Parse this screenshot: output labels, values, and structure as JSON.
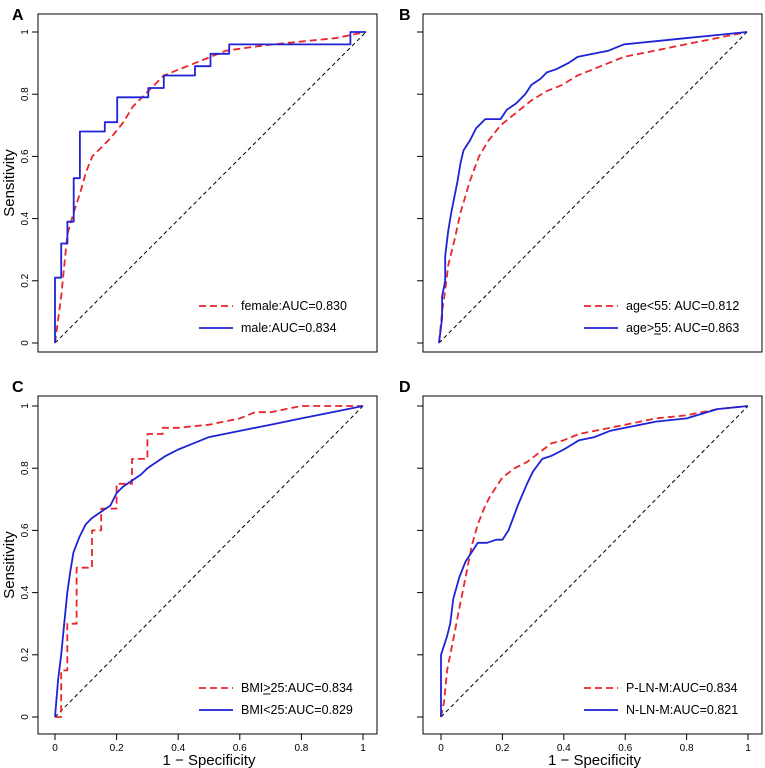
{
  "colors": {
    "red": "#e8262b",
    "blue": "#1f22d6",
    "axis": "#000000"
  },
  "chart_data": [
    {
      "panel_label": "A",
      "type": "line",
      "xlabel": "",
      "ylabel": "Sensitivity",
      "xlim": [
        0,
        1
      ],
      "ylim": [
        0,
        1
      ],
      "x_ticks": [],
      "x_tick_labels": [],
      "y_ticks": [
        0,
        0.2,
        0.4,
        0.6,
        0.8,
        1
      ],
      "y_tick_labels": [
        "0",
        "0.2",
        "0.4",
        "0.6",
        "0.8",
        "1"
      ],
      "reference_line": "diagonal",
      "legend_position": "bottom-right",
      "series": [
        {
          "name": "female:AUC=0.830",
          "color": "red",
          "dash": true,
          "x": [
            0,
            0.02,
            0.03,
            0.04,
            0.06,
            0.08,
            0.1,
            0.12,
            0.15,
            0.18,
            0.22,
            0.25,
            0.3,
            0.35,
            0.4,
            0.45,
            0.5,
            0.55,
            0.62,
            0.7,
            0.8,
            0.9,
            1
          ],
          "y": [
            0,
            0.15,
            0.25,
            0.35,
            0.42,
            0.48,
            0.55,
            0.6,
            0.63,
            0.66,
            0.71,
            0.76,
            0.81,
            0.86,
            0.88,
            0.9,
            0.92,
            0.94,
            0.95,
            0.96,
            0.97,
            0.98,
            1
          ]
        },
        {
          "name": "male:AUC=0.834",
          "color": "blue",
          "dash": false,
          "x": [
            0,
            0,
            0.02,
            0.02,
            0.04,
            0.04,
            0.06,
            0.06,
            0.08,
            0.08,
            0.16,
            0.16,
            0.2,
            0.2,
            0.3,
            0.3,
            0.35,
            0.35,
            0.45,
            0.45,
            0.5,
            0.5,
            0.56,
            0.56,
            0.6,
            0.6,
            0.95,
            0.95,
            1
          ],
          "y": [
            0,
            0.21,
            0.21,
            0.32,
            0.32,
            0.39,
            0.39,
            0.53,
            0.53,
            0.68,
            0.68,
            0.71,
            0.71,
            0.79,
            0.79,
            0.82,
            0.82,
            0.86,
            0.86,
            0.89,
            0.89,
            0.93,
            0.93,
            0.96,
            0.96,
            0.96,
            0.96,
            1,
            1
          ]
        }
      ]
    },
    {
      "panel_label": "B",
      "type": "line",
      "xlabel": "",
      "ylabel": "",
      "xlim": [
        0,
        1
      ],
      "ylim": [
        0,
        1
      ],
      "x_ticks": [],
      "x_tick_labels": [],
      "y_ticks": [
        0,
        0.2,
        0.4,
        0.6,
        0.8,
        1
      ],
      "y_tick_labels": [],
      "reference_line": "diagonal",
      "legend_position": "bottom-right",
      "series": [
        {
          "name": "age<55: AUC=0.812",
          "color": "red",
          "dash": true,
          "x": [
            0,
            0.01,
            0.02,
            0.03,
            0.05,
            0.07,
            0.1,
            0.13,
            0.16,
            0.2,
            0.25,
            0.3,
            0.35,
            0.4,
            0.45,
            0.5,
            0.55,
            0.6,
            0.7,
            0.8,
            0.9,
            1
          ],
          "y": [
            0,
            0.1,
            0.17,
            0.25,
            0.33,
            0.42,
            0.52,
            0.6,
            0.65,
            0.7,
            0.74,
            0.78,
            0.81,
            0.83,
            0.86,
            0.88,
            0.9,
            0.92,
            0.94,
            0.96,
            0.98,
            1
          ]
        },
        {
          "name": "age>55: AUC=0.863",
          "label_underline_char_index": 4,
          "color": "blue",
          "dash": false,
          "x": [
            0,
            0.01,
            0.01,
            0.02,
            0.02,
            0.03,
            0.04,
            0.05,
            0.06,
            0.07,
            0.08,
            0.1,
            0.12,
            0.15,
            0.2,
            0.22,
            0.25,
            0.28,
            0.3,
            0.33,
            0.35,
            0.38,
            0.42,
            0.45,
            0.5,
            0.55,
            0.6,
            0.7,
            0.8,
            0.9,
            1
          ],
          "y": [
            0,
            0.08,
            0.15,
            0.2,
            0.28,
            0.36,
            0.42,
            0.47,
            0.52,
            0.58,
            0.62,
            0.65,
            0.69,
            0.72,
            0.72,
            0.75,
            0.77,
            0.8,
            0.83,
            0.85,
            0.87,
            0.88,
            0.9,
            0.92,
            0.93,
            0.94,
            0.96,
            0.97,
            0.98,
            0.99,
            1
          ]
        }
      ]
    },
    {
      "panel_label": "C",
      "type": "line",
      "xlabel": "1 − Specificity",
      "ylabel": "Sensitivity",
      "xlim": [
        0,
        1
      ],
      "ylim": [
        0,
        1
      ],
      "x_ticks": [
        0,
        0.2,
        0.4,
        0.6,
        0.8,
        1
      ],
      "x_tick_labels": [
        "0",
        "0.2",
        "0.4",
        "0.6",
        "0.8",
        "1"
      ],
      "y_ticks": [
        0,
        0.2,
        0.4,
        0.6,
        0.8,
        1
      ],
      "y_tick_labels": [
        "0",
        "0.2",
        "0.4",
        "0.6",
        "0.8",
        "1"
      ],
      "reference_line": "diagonal",
      "legend_position": "bottom-right",
      "series": [
        {
          "name": "BMI>25:AUC=0.834",
          "label_underline_char_index": 3,
          "color": "red",
          "dash": true,
          "x": [
            0,
            0.02,
            0.02,
            0.04,
            0.04,
            0.07,
            0.07,
            0.12,
            0.12,
            0.15,
            0.15,
            0.2,
            0.2,
            0.25,
            0.25,
            0.3,
            0.3,
            0.35,
            0.35,
            0.4,
            0.5,
            0.6,
            0.65,
            0.7,
            0.8,
            0.9,
            1
          ],
          "y": [
            0,
            0,
            0.15,
            0.15,
            0.3,
            0.3,
            0.48,
            0.48,
            0.6,
            0.6,
            0.67,
            0.67,
            0.75,
            0.75,
            0.83,
            0.83,
            0.91,
            0.91,
            0.93,
            0.93,
            0.94,
            0.96,
            0.98,
            0.98,
            1,
            1,
            1
          ]
        },
        {
          "name": "BMI<25:AUC=0.829",
          "color": "blue",
          "dash": false,
          "x": [
            0,
            0.01,
            0.02,
            0.03,
            0.04,
            0.05,
            0.06,
            0.08,
            0.1,
            0.12,
            0.15,
            0.18,
            0.2,
            0.22,
            0.25,
            0.28,
            0.3,
            0.33,
            0.36,
            0.4,
            0.45,
            0.5,
            0.55,
            0.6,
            0.7,
            0.8,
            0.9,
            1
          ],
          "y": [
            0,
            0.12,
            0.2,
            0.3,
            0.4,
            0.47,
            0.53,
            0.58,
            0.62,
            0.64,
            0.66,
            0.68,
            0.72,
            0.74,
            0.76,
            0.78,
            0.8,
            0.82,
            0.84,
            0.86,
            0.88,
            0.9,
            0.91,
            0.92,
            0.94,
            0.96,
            0.98,
            1
          ]
        }
      ]
    },
    {
      "panel_label": "D",
      "type": "line",
      "xlabel": "1 − Specificity",
      "ylabel": "",
      "xlim": [
        0,
        1
      ],
      "ylim": [
        0,
        1
      ],
      "x_ticks": [
        0,
        0.2,
        0.4,
        0.6,
        0.8,
        1
      ],
      "x_tick_labels": [
        "0",
        "0.2",
        "0.4",
        "0.6",
        "0.8",
        "1"
      ],
      "y_ticks": [
        0,
        0.2,
        0.4,
        0.6,
        0.8,
        1
      ],
      "y_tick_labels": [],
      "reference_line": "diagonal",
      "legend_position": "bottom-right",
      "series": [
        {
          "name": "P-LN-M:AUC=0.834",
          "color": "red",
          "dash": true,
          "x": [
            0,
            0.01,
            0.02,
            0.04,
            0.06,
            0.08,
            0.1,
            0.12,
            0.14,
            0.16,
            0.18,
            0.2,
            0.24,
            0.28,
            0.32,
            0.36,
            0.4,
            0.45,
            0.5,
            0.55,
            0.6,
            0.7,
            0.8,
            0.9,
            1
          ],
          "y": [
            0,
            0.05,
            0.15,
            0.25,
            0.35,
            0.45,
            0.55,
            0.62,
            0.67,
            0.71,
            0.74,
            0.77,
            0.8,
            0.82,
            0.85,
            0.88,
            0.89,
            0.91,
            0.92,
            0.93,
            0.94,
            0.96,
            0.97,
            0.99,
            1
          ]
        },
        {
          "name": "N-LN-M:AUC=0.821",
          "color": "blue",
          "dash": false,
          "x": [
            0,
            0,
            0.02,
            0.03,
            0.04,
            0.06,
            0.08,
            0.1,
            0.12,
            0.15,
            0.18,
            0.2,
            0.22,
            0.25,
            0.28,
            0.3,
            0.33,
            0.36,
            0.4,
            0.45,
            0.5,
            0.55,
            0.6,
            0.7,
            0.8,
            0.9,
            1
          ],
          "y": [
            0,
            0.2,
            0.26,
            0.3,
            0.38,
            0.45,
            0.5,
            0.53,
            0.56,
            0.56,
            0.57,
            0.57,
            0.6,
            0.68,
            0.75,
            0.79,
            0.83,
            0.84,
            0.86,
            0.89,
            0.9,
            0.92,
            0.93,
            0.95,
            0.96,
            0.99,
            1
          ]
        }
      ]
    }
  ]
}
